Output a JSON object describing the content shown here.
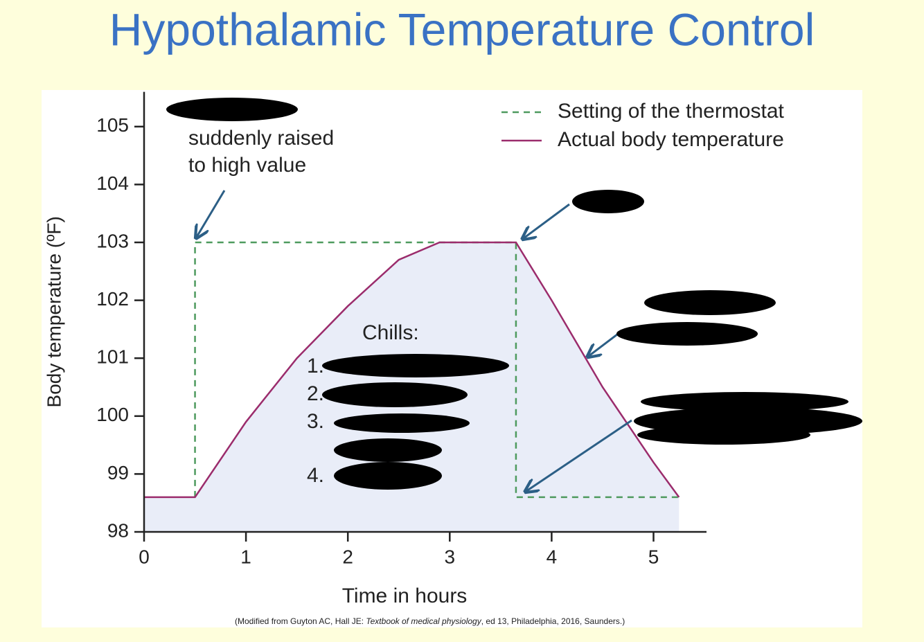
{
  "chart_data": {
    "type": "line",
    "title": "Hypothalamic Temperature Control",
    "xlabel": "Time in hours",
    "ylabel": "Body temperature (ºF)",
    "xlim": [
      0,
      5.52
    ],
    "ylim": [
      98,
      105.6
    ],
    "xticks": [
      0,
      1,
      2,
      3,
      4,
      5
    ],
    "yticks": [
      98,
      99,
      100,
      101,
      102,
      103,
      104,
      105
    ],
    "legend": "upper right",
    "series": [
      {
        "name": "Setting of the thermostat",
        "color": "#4e9a5e",
        "style": "dashed",
        "x": [
          0.5,
          0.5,
          3.65,
          3.65,
          5.25
        ],
        "values": [
          98.6,
          103,
          103,
          98.6,
          98.6
        ]
      },
      {
        "name": "Actual body temperature",
        "color": "#9b2c6c",
        "style": "solid",
        "fill": "#e9edf8",
        "x": [
          0,
          0.5,
          1,
          1.5,
          2,
          2.5,
          2.9,
          3.65,
          4,
          4.5,
          5,
          5.25
        ],
        "values": [
          98.6,
          98.6,
          99.9,
          101.0,
          101.9,
          102.7,
          103,
          103,
          102.0,
          100.5,
          99.2,
          98.6
        ]
      }
    ],
    "annotations": [
      "suddenly raised",
      "to high value",
      "Chills:",
      "1.",
      "2.",
      "3.",
      "4."
    ],
    "source": {
      "prefix": "(Modified from Guyton AC, Hall JE: ",
      "book": "Textbook of medical physiology",
      "suffix": ", ed 13, Philadelphia, 2016, Saunders.)"
    }
  }
}
